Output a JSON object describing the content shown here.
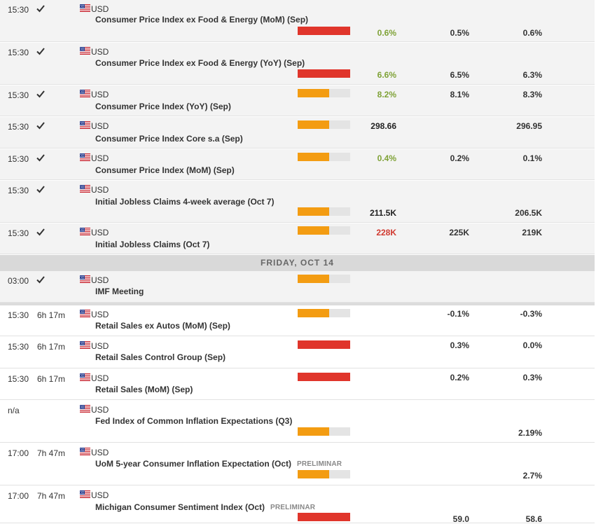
{
  "day_header": "FRIDAY, OCT 14",
  "colors": {
    "high": "#e0352b",
    "medium": "#f39c12",
    "better": "#7fa237",
    "worse": "#d0392f"
  },
  "events": [
    {
      "time": "15:30",
      "status": "check",
      "currency": "USD",
      "name": "Consumer Price Index ex Food & Energy (MoM) (Sep)",
      "impact": "high",
      "actual": "0.6%",
      "actual_color": "green",
      "forecast": "0.5%",
      "previous": "0.6%"
    },
    {
      "time": "15:30",
      "status": "check",
      "currency": "USD",
      "name": "Consumer Price Index ex Food & Energy (YoY) (Sep)",
      "impact": "high",
      "actual": "6.6%",
      "actual_color": "green",
      "forecast": "6.5%",
      "previous": "6.3%"
    },
    {
      "time": "15:30",
      "status": "check",
      "currency": "USD",
      "name": "Consumer Price Index (YoY) (Sep)",
      "impact": "medium",
      "actual": "8.2%",
      "actual_color": "green",
      "forecast": "8.1%",
      "previous": "8.3%"
    },
    {
      "time": "15:30",
      "status": "check",
      "currency": "USD",
      "name": "Consumer Price Index Core s.a (Sep)",
      "impact": "medium",
      "actual": "298.66",
      "actual_color": "dark",
      "forecast": "",
      "previous": "296.95"
    },
    {
      "time": "15:30",
      "status": "check",
      "currency": "USD",
      "name": "Consumer Price Index (MoM) (Sep)",
      "impact": "medium",
      "actual": "0.4%",
      "actual_color": "green",
      "forecast": "0.2%",
      "previous": "0.1%"
    },
    {
      "time": "15:30",
      "status": "check",
      "currency": "USD",
      "name": "Initial Jobless Claims 4-week average (Oct 7)",
      "impact": "medium",
      "actual": "211.5K",
      "actual_color": "dark",
      "forecast": "",
      "previous": "206.5K"
    },
    {
      "time": "15:30",
      "status": "check",
      "currency": "USD",
      "name": "Initial Jobless Claims (Oct 7)",
      "impact": "medium",
      "actual": "228K",
      "actual_color": "red",
      "forecast": "225K",
      "previous": "219K"
    },
    {
      "time": "03:00",
      "status": "check",
      "currency": "USD",
      "name": "IMF Meeting",
      "impact": "medium",
      "actual": "",
      "actual_color": "dark",
      "forecast": "",
      "previous": ""
    },
    {
      "time": "15:30",
      "status": "6h 17m",
      "currency": "USD",
      "name": "Retail Sales ex Autos (MoM) (Sep)",
      "impact": "medium",
      "actual": "",
      "actual_color": "dark",
      "forecast": "-0.1%",
      "previous": "-0.3%"
    },
    {
      "time": "15:30",
      "status": "6h 17m",
      "currency": "USD",
      "name": "Retail Sales Control Group (Sep)",
      "impact": "high",
      "actual": "",
      "actual_color": "dark",
      "forecast": "0.3%",
      "previous": "0.0%"
    },
    {
      "time": "15:30",
      "status": "6h 17m",
      "currency": "USD",
      "name": "Retail Sales (MoM) (Sep)",
      "impact": "high",
      "actual": "",
      "actual_color": "dark",
      "forecast": "0.2%",
      "previous": "0.3%"
    },
    {
      "time": "n/a",
      "status": "",
      "currency": "USD",
      "name": "Fed Index of Common Inflation Expectations (Q3)",
      "impact": "medium",
      "actual": "",
      "actual_color": "dark",
      "forecast": "",
      "previous": "2.19%"
    },
    {
      "time": "17:00",
      "status": "7h 47m",
      "currency": "USD",
      "name": "UoM 5-year Consumer Inflation Expectation (Oct)",
      "tag": "PRELIMINAR",
      "impact": "medium",
      "actual": "",
      "actual_color": "dark",
      "forecast": "",
      "previous": "2.7%"
    },
    {
      "time": "17:00",
      "status": "7h 47m",
      "currency": "USD",
      "name": "Michigan Consumer Sentiment Index (Oct)",
      "tag": "PRELIMINAR",
      "impact": "high",
      "actual": "",
      "actual_color": "dark",
      "forecast": "59.0",
      "previous": "58.6"
    }
  ]
}
